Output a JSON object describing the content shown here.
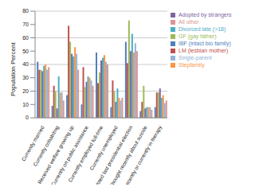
{
  "chart_data": {
    "type": "bar",
    "y_label": "Population Percent",
    "categories": [
      "Currently married",
      "Currently cohabiting",
      "Received welfare growing up",
      "Currently on public assistance",
      "Currently employed full-time",
      "Currently unemployed",
      "Voted last presidential election",
      "Thought recently about suicide",
      "Recently or currently in therapy"
    ],
    "series": [
      {
        "name": "IBF (intact bio family)",
        "color": "#4F81BD",
        "values": [
          42,
          9,
          17,
          10,
          49,
          8,
          57,
          5,
          8
        ]
      },
      {
        "name": "LM (lesbian mother)",
        "color": "#C0504D",
        "values": [
          36,
          24,
          69,
          38,
          26,
          28,
          41,
          12,
          19
        ]
      },
      {
        "name": "GF (gay father)",
        "color": "#9BBB59",
        "values": [
          36,
          20,
          57,
          23,
          34,
          20,
          73,
          24,
          19
        ]
      },
      {
        "name": "Adopted by strangers",
        "color": "#8064A2",
        "values": [
          35,
          7,
          48,
          27,
          43,
          12,
          50,
          7,
          22
        ]
      },
      {
        "name": "Divorced late (>18)",
        "color": "#4BACC6",
        "values": [
          39,
          31,
          46,
          31,
          45,
          22,
          63,
          8,
          15
        ]
      },
      {
        "name": "Stepfamily",
        "color": "#F79646",
        "values": [
          40,
          19,
          53,
          30,
          47,
          15,
          49,
          8,
          17
        ]
      },
      {
        "name": "Single-parent",
        "color": "#95B3D7",
        "values": [
          36,
          19,
          48,
          28,
          42,
          13,
          56,
          8,
          11
        ]
      },
      {
        "name": "All other",
        "color": "#D99694",
        "values": [
          38,
          13,
          36,
          24,
          40,
          15,
          50,
          6,
          13
        ]
      }
    ],
    "ylim": [
      0,
      80
    ],
    "yticks": [
      0,
      10,
      20,
      30,
      40,
      50,
      60,
      70,
      80
    ],
    "grid": true,
    "legend": "right"
  }
}
